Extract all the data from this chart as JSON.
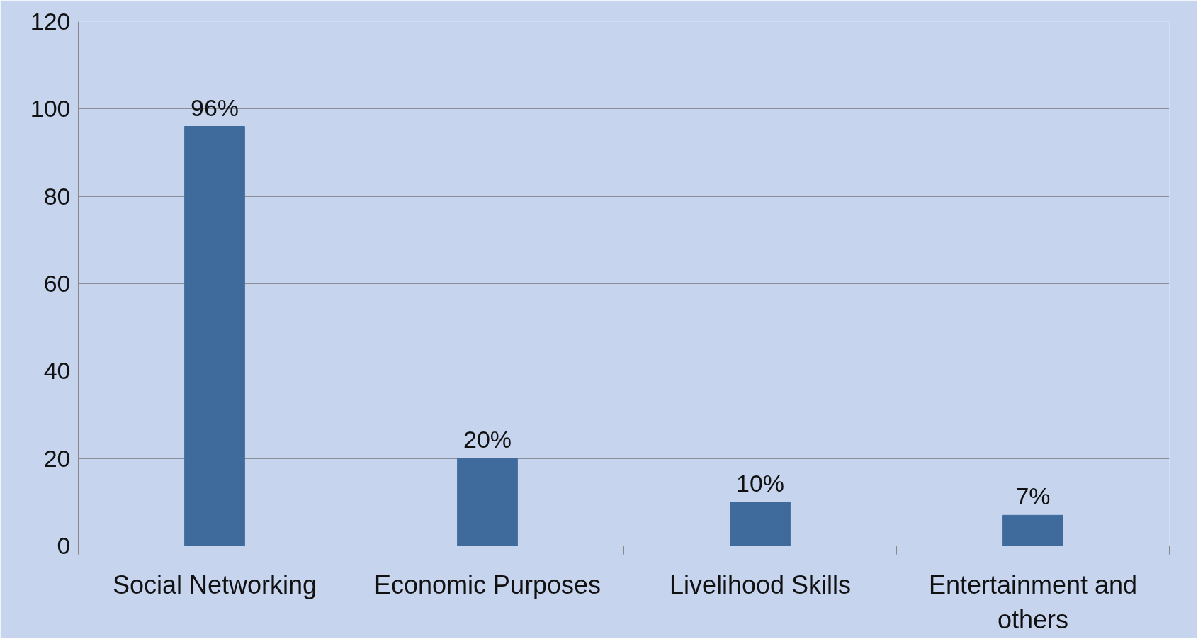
{
  "chart_data": {
    "type": "bar",
    "categories": [
      "Social Networking",
      "Economic Purposes",
      "Livelihood Skills",
      "Entertainment and others"
    ],
    "values": [
      96,
      20,
      10,
      7
    ],
    "value_labels": [
      "96%",
      "20%",
      "10%",
      "7%"
    ],
    "color": "#3f6a9c",
    "ylim": [
      0,
      120
    ],
    "yticks": [
      0,
      20,
      40,
      60,
      80,
      100,
      120
    ],
    "grid": "y"
  }
}
